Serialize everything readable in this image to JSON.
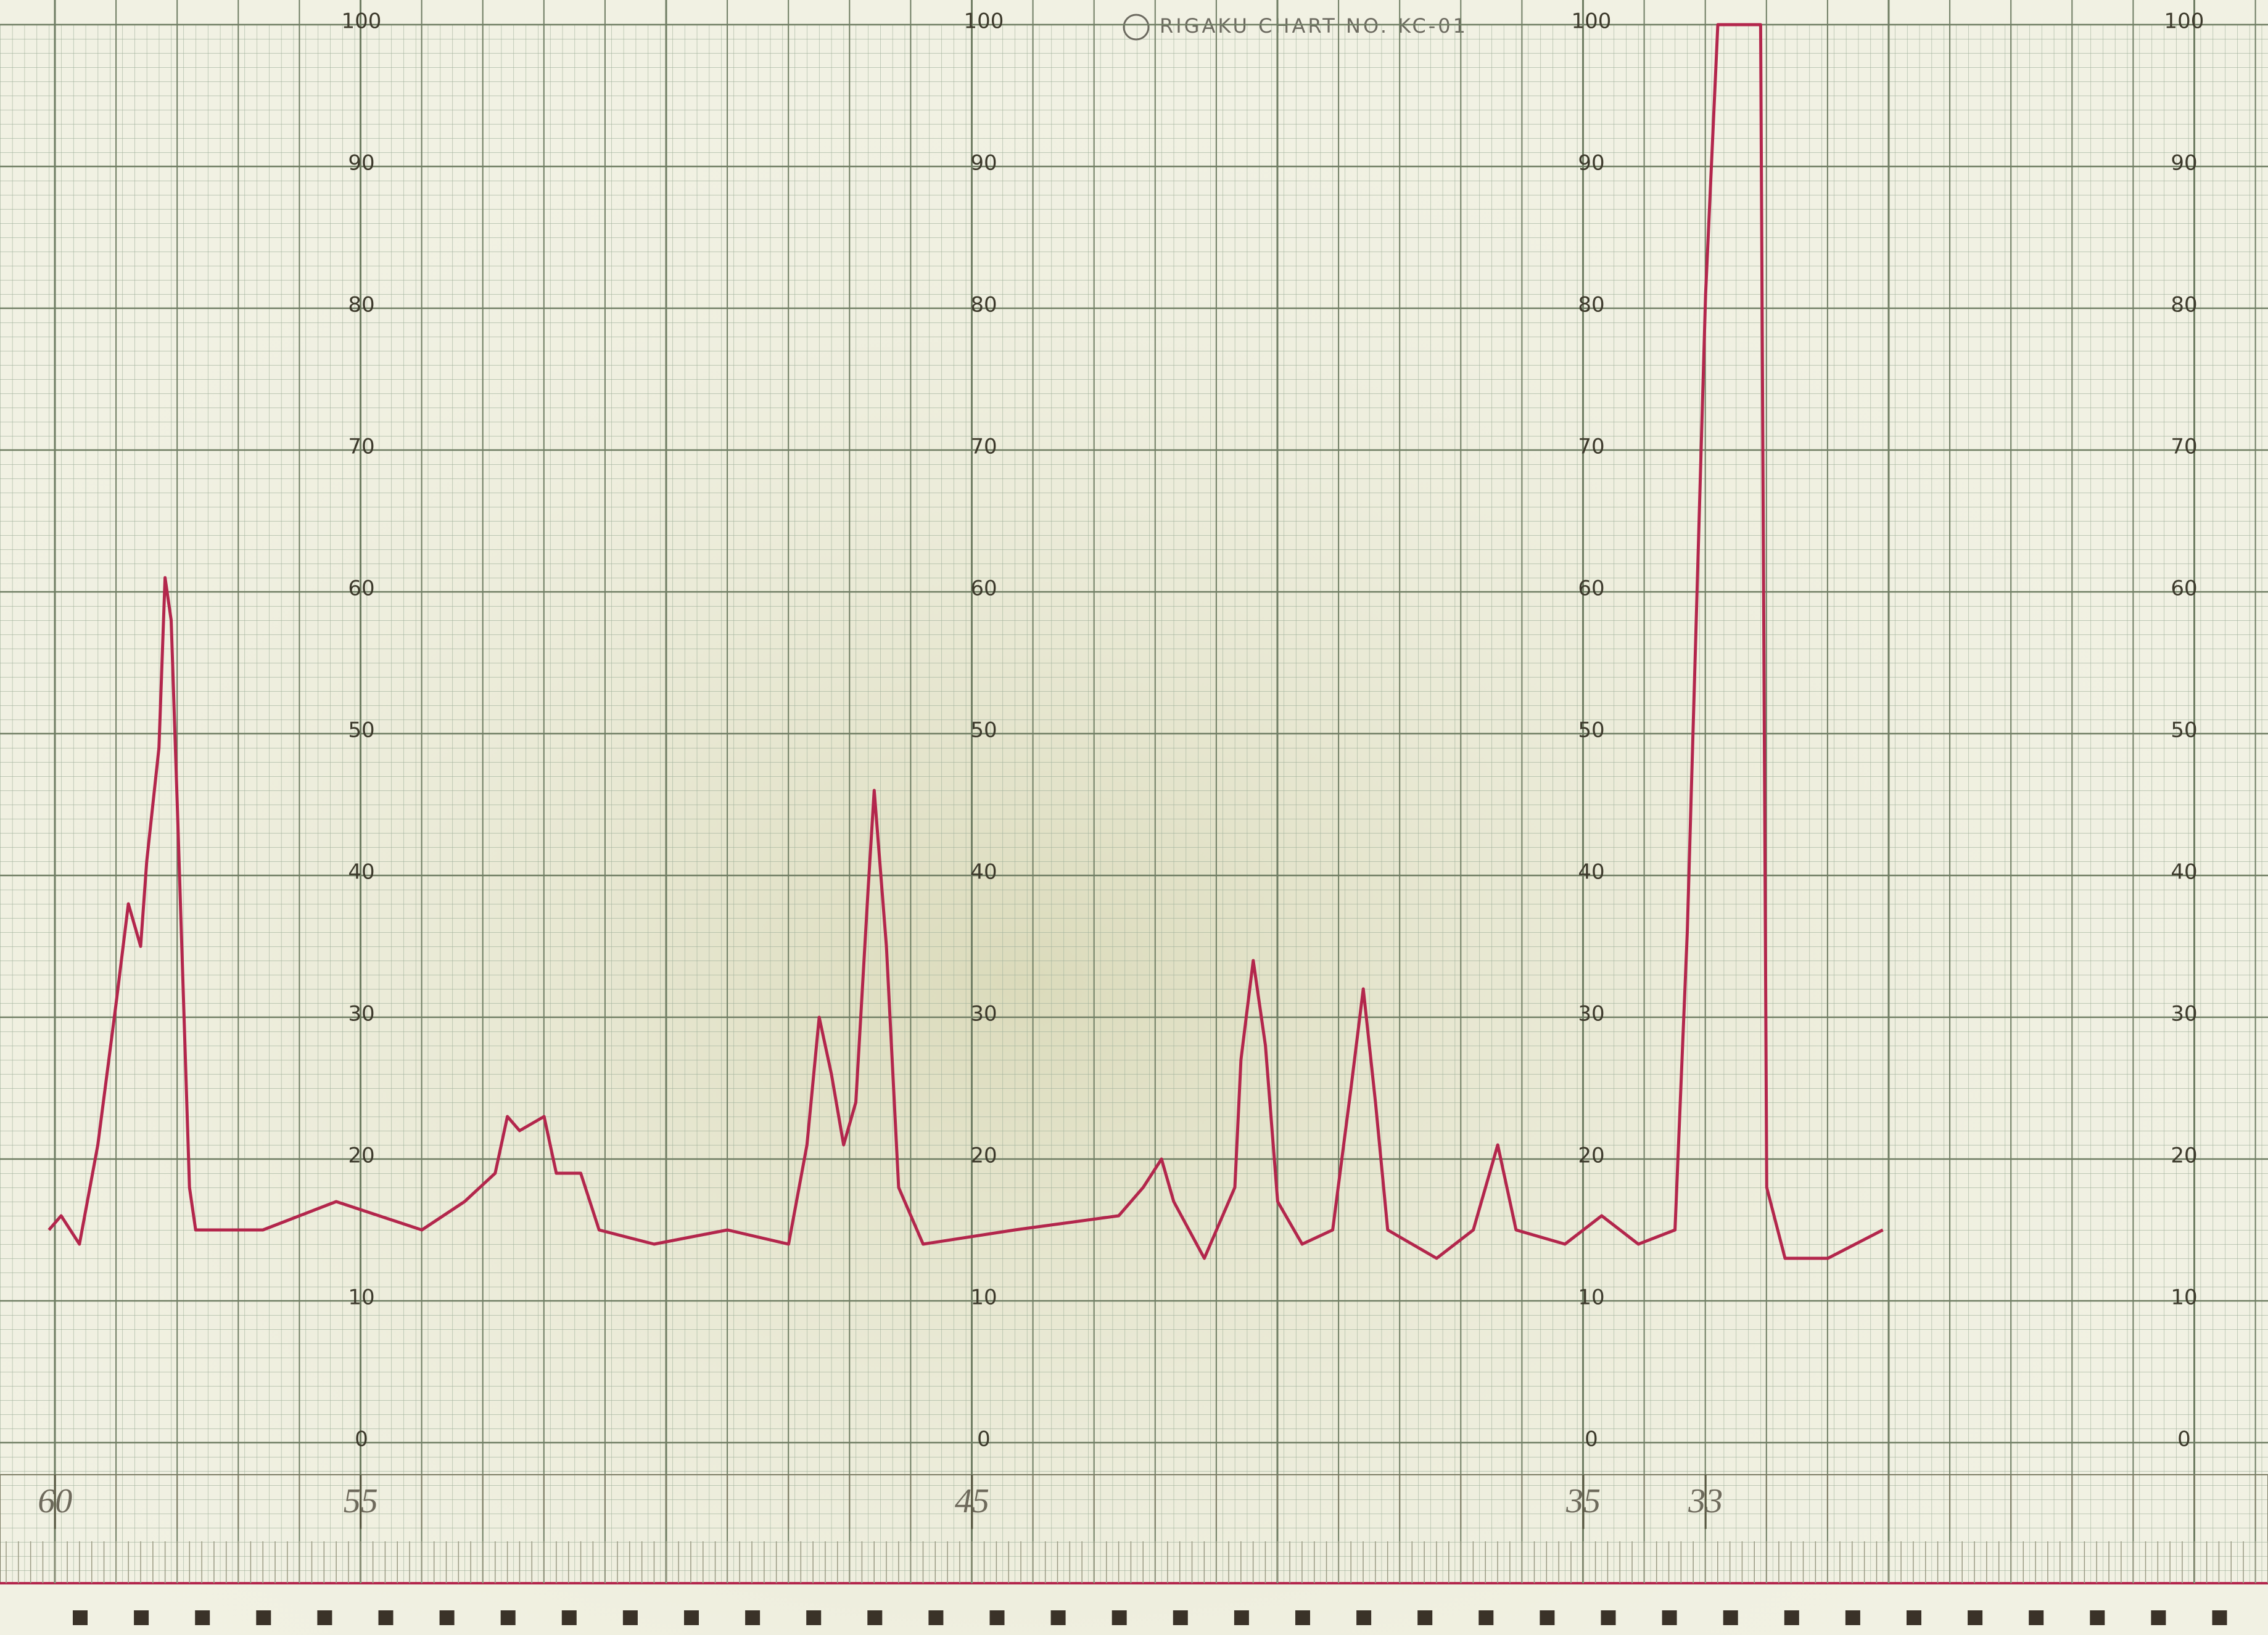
{
  "chart_data": {
    "type": "line",
    "title": "RIGAKU CHART NO. KC-01",
    "color": "#b3264c",
    "grid": true,
    "x": [
      60.1,
      59.9,
      59.6,
      59.3,
      59.0,
      58.8,
      58.6,
      58.5,
      58.3,
      58.2,
      58.1,
      58.0,
      57.8,
      57.7,
      56.6,
      55.4,
      54.7,
      54.0,
      53.3,
      52.8,
      52.6,
      52.4,
      52.0,
      51.8,
      51.4,
      51.1,
      50.2,
      49.0,
      48.0,
      47.7,
      47.5,
      47.3,
      47.1,
      46.9,
      46.7,
      46.6,
      46.4,
      46.2,
      45.8,
      44.3,
      42.6,
      42.2,
      41.9,
      41.7,
      41.2,
      40.7,
      40.6,
      40.4,
      40.2,
      40.0,
      39.6,
      39.1,
      38.8,
      38.6,
      38.4,
      38.2,
      37.4,
      36.8,
      36.6,
      36.4,
      36.1,
      35.3,
      34.7,
      34.1,
      33.5,
      33.3,
      33.0,
      32.8,
      32.1,
      32.0,
      31.7,
      31.0,
      30.1
    ],
    "values": [
      15,
      16,
      14,
      21,
      31,
      38,
      35,
      41,
      49,
      61,
      58,
      45,
      18,
      15,
      15,
      17,
      16,
      15,
      17,
      19,
      23,
      22,
      23,
      19,
      19,
      15,
      14,
      15,
      14,
      21,
      30,
      26,
      21,
      24,
      39,
      46,
      35,
      18,
      14,
      15,
      16,
      18,
      20,
      17,
      13,
      18,
      27,
      34,
      28,
      17,
      14,
      15,
      25,
      32,
      24,
      15,
      13,
      15,
      18,
      21,
      15,
      14,
      16,
      14,
      15,
      36,
      81,
      100,
      100,
      18,
      13,
      13,
      15
    ],
    "xlim": [
      60.9,
      23.8
    ],
    "xticks": [
      60,
      55,
      45,
      35,
      33
    ],
    "ylim": [
      0,
      100
    ],
    "yticks": [
      0,
      10,
      20,
      30,
      40,
      50,
      60,
      70,
      80,
      90,
      100
    ]
  }
}
